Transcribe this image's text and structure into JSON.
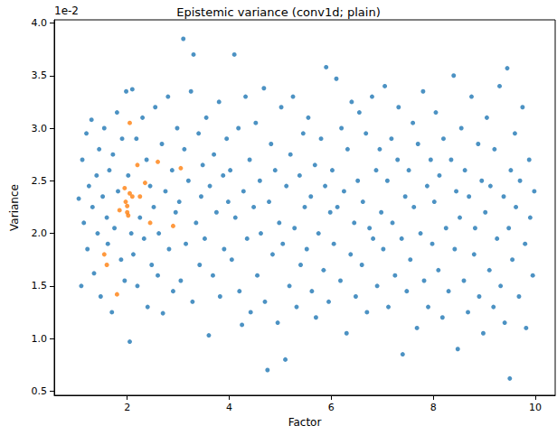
{
  "chart_data": {
    "type": "scatter",
    "title": "Epistemic variance (conv1d; plain)",
    "x_label": "Factor",
    "y_label": "Variance",
    "annotations": [
      "1e-2"
    ],
    "xlim": [
      0.57,
      10.39
    ],
    "xticks": [
      2,
      4,
      6,
      8,
      10
    ],
    "ylim": [
      0.46,
      4.03
    ],
    "yticks": [
      0.5,
      {
        "value": 1,
        "label": "1.0"
      },
      1.5,
      {
        "value": 2,
        "label": "2.0"
      },
      2.5,
      {
        "value": 3,
        "label": "3.0"
      },
      3.5,
      {
        "value": 4,
        "label": "4.0"
      }
    ],
    "grid": false,
    "marker": "circle",
    "series": [
      {
        "color": "#1f77b4",
        "values": [
          [
            1.05,
            2.33
          ],
          [
            1.1,
            1.5
          ],
          [
            1.12,
            2.7
          ],
          [
            1.15,
            2.1
          ],
          [
            1.2,
            2.95
          ],
          [
            1.22,
            1.85
          ],
          [
            1.25,
            2.45
          ],
          [
            1.3,
            3.08
          ],
          [
            1.32,
            2.25
          ],
          [
            1.35,
            1.62
          ],
          [
            1.4,
            2.55
          ],
          [
            1.42,
            2.0
          ],
          [
            1.45,
            2.8
          ],
          [
            1.48,
            1.4
          ],
          [
            1.52,
            2.35
          ],
          [
            1.55,
            3.0
          ],
          [
            1.6,
            2.15
          ],
          [
            1.62,
            1.9
          ],
          [
            1.65,
            2.6
          ],
          [
            1.7,
            1.25
          ],
          [
            1.72,
            2.75
          ],
          [
            1.75,
            2.05
          ],
          [
            1.8,
            3.15
          ],
          [
            1.82,
            2.4
          ],
          [
            1.88,
            1.75
          ],
          [
            1.9,
            2.9
          ],
          [
            1.95,
            1.55
          ],
          [
            1.98,
            3.35
          ],
          [
            2.02,
            2.55
          ],
          [
            2.05,
            0.97
          ],
          [
            2.08,
            2.0
          ],
          [
            2.1,
            3.37
          ],
          [
            2.12,
            1.8
          ],
          [
            2.18,
            2.9
          ],
          [
            2.2,
            1.5
          ],
          [
            2.25,
            2.15
          ],
          [
            2.3,
            3.1
          ],
          [
            2.33,
            1.95
          ],
          [
            2.38,
            2.7
          ],
          [
            2.4,
            1.3
          ],
          [
            2.45,
            2.45
          ],
          [
            2.48,
            1.7
          ],
          [
            2.52,
            2.25
          ],
          [
            2.55,
            3.2
          ],
          [
            2.6,
            1.6
          ],
          [
            2.62,
            2.0
          ],
          [
            2.68,
            2.85
          ],
          [
            2.7,
            1.24
          ],
          [
            2.75,
            2.4
          ],
          [
            2.8,
            3.3
          ],
          [
            2.82,
            1.85
          ],
          [
            2.88,
            2.6
          ],
          [
            2.9,
            1.45
          ],
          [
            2.95,
            2.2
          ],
          [
            2.98,
            3.0
          ],
          [
            3.02,
            2.3
          ],
          [
            3.05,
            1.55
          ],
          [
            3.1,
            3.85
          ],
          [
            3.12,
            2.8
          ],
          [
            3.15,
            1.9
          ],
          [
            3.2,
            2.5
          ],
          [
            3.25,
            3.35
          ],
          [
            3.28,
            1.35
          ],
          [
            3.3,
            3.7
          ],
          [
            3.35,
            2.1
          ],
          [
            3.4,
            2.95
          ],
          [
            3.42,
            1.7
          ],
          [
            3.45,
            2.35
          ],
          [
            3.48,
            2.65
          ],
          [
            3.52,
            1.95
          ],
          [
            3.55,
            3.1
          ],
          [
            3.6,
            1.03
          ],
          [
            3.62,
            2.45
          ],
          [
            3.68,
            1.6
          ],
          [
            3.7,
            2.75
          ],
          [
            3.75,
            2.2
          ],
          [
            3.8,
            3.25
          ],
          [
            3.82,
            1.4
          ],
          [
            3.88,
            2.55
          ],
          [
            3.9,
            1.85
          ],
          [
            3.95,
            2.9
          ],
          [
            3.98,
            2.3
          ],
          [
            4.02,
            2.6
          ],
          [
            4.05,
            1.75
          ],
          [
            4.1,
            3.7
          ],
          [
            4.12,
            2.15
          ],
          [
            4.18,
            3.0
          ],
          [
            4.2,
            1.45
          ],
          [
            4.25,
            1.13
          ],
          [
            4.28,
            2.4
          ],
          [
            4.32,
            3.3
          ],
          [
            4.35,
            1.95
          ],
          [
            4.4,
            2.7
          ],
          [
            4.42,
            1.25
          ],
          [
            4.48,
            2.25
          ],
          [
            4.52,
            3.05
          ],
          [
            4.55,
            1.6
          ],
          [
            4.6,
            2.5
          ],
          [
            4.62,
            2.0
          ],
          [
            4.68,
            3.38
          ],
          [
            4.7,
            1.35
          ],
          [
            4.75,
            0.7
          ],
          [
            4.78,
            2.3
          ],
          [
            4.82,
            2.85
          ],
          [
            4.85,
            1.8
          ],
          [
            4.9,
            2.6
          ],
          [
            4.95,
            1.15
          ],
          [
            4.98,
            2.1
          ],
          [
            5.02,
            3.2
          ],
          [
            5.05,
            1.9
          ],
          [
            5.1,
            0.8
          ],
          [
            5.12,
            2.45
          ],
          [
            5.18,
            1.5
          ],
          [
            5.2,
            2.75
          ],
          [
            5.25,
            3.3
          ],
          [
            5.28,
            2.05
          ],
          [
            5.32,
            1.3
          ],
          [
            5.38,
            2.55
          ],
          [
            5.4,
            1.7
          ],
          [
            5.45,
            2.95
          ],
          [
            5.48,
            2.25
          ],
          [
            5.52,
            1.85
          ],
          [
            5.55,
            3.1
          ],
          [
            5.6,
            2.35
          ],
          [
            5.62,
            1.45
          ],
          [
            5.68,
            2.65
          ],
          [
            5.7,
            1.2
          ],
          [
            5.75,
            2.0
          ],
          [
            5.8,
            2.9
          ],
          [
            5.85,
            1.65
          ],
          [
            5.88,
            2.45
          ],
          [
            5.9,
            3.58
          ],
          [
            5.95,
            1.35
          ],
          [
            5.98,
            2.2
          ],
          [
            6.02,
            2.6
          ],
          [
            6.05,
            1.9
          ],
          [
            6.1,
            3.47
          ],
          [
            6.12,
            2.25
          ],
          [
            6.18,
            1.55
          ],
          [
            6.2,
            3.0
          ],
          [
            6.25,
            2.4
          ],
          [
            6.3,
            1.05
          ],
          [
            6.32,
            2.8
          ],
          [
            6.38,
            1.8
          ],
          [
            6.4,
            3.25
          ],
          [
            6.45,
            2.1
          ],
          [
            6.48,
            1.4
          ],
          [
            6.52,
            2.5
          ],
          [
            6.55,
            3.15
          ],
          [
            6.6,
            1.7
          ],
          [
            6.62,
            2.3
          ],
          [
            6.68,
            2.95
          ],
          [
            6.7,
            1.25
          ],
          [
            6.75,
            2.05
          ],
          [
            6.8,
            3.3
          ],
          [
            6.82,
            1.95
          ],
          [
            6.88,
            2.6
          ],
          [
            6.9,
            1.5
          ],
          [
            6.95,
            2.8
          ],
          [
            6.98,
            2.2
          ],
          [
            7.02,
            1.85
          ],
          [
            7.05,
            3.4
          ],
          [
            7.1,
            2.5
          ],
          [
            7.12,
            1.3
          ],
          [
            7.18,
            2.9
          ],
          [
            7.2,
            2.1
          ],
          [
            7.25,
            1.6
          ],
          [
            7.3,
            2.7
          ],
          [
            7.32,
            3.2
          ],
          [
            7.38,
            1.95
          ],
          [
            7.4,
            0.85
          ],
          [
            7.45,
            2.35
          ],
          [
            7.48,
            1.45
          ],
          [
            7.52,
            2.6
          ],
          [
            7.55,
            1.75
          ],
          [
            7.6,
            3.05
          ],
          [
            7.62,
            2.25
          ],
          [
            7.68,
            1.1
          ],
          [
            7.7,
            2.85
          ],
          [
            7.75,
            2.0
          ],
          [
            7.8,
            3.35
          ],
          [
            7.82,
            1.55
          ],
          [
            7.88,
            2.45
          ],
          [
            7.9,
            1.3
          ],
          [
            7.95,
            2.7
          ],
          [
            7.98,
            1.9
          ],
          [
            8.02,
            2.3
          ],
          [
            8.05,
            3.15
          ],
          [
            8.1,
            1.65
          ],
          [
            8.12,
            2.55
          ],
          [
            8.18,
            1.2
          ],
          [
            8.2,
            2.9
          ],
          [
            8.25,
            2.05
          ],
          [
            8.3,
            1.45
          ],
          [
            8.35,
            2.7
          ],
          [
            8.4,
            3.5
          ],
          [
            8.42,
            1.85
          ],
          [
            8.45,
            2.4
          ],
          [
            8.48,
            0.9
          ],
          [
            8.52,
            2.15
          ],
          [
            8.55,
            3.0
          ],
          [
            8.6,
            1.55
          ],
          [
            8.62,
            2.6
          ],
          [
            8.68,
            1.25
          ],
          [
            8.7,
            2.35
          ],
          [
            8.75,
            3.3
          ],
          [
            8.8,
            1.8
          ],
          [
            8.82,
            2.05
          ],
          [
            8.88,
            2.85
          ],
          [
            8.9,
            1.4
          ],
          [
            8.95,
            2.5
          ],
          [
            8.98,
            1.05
          ],
          [
            9.02,
            2.2
          ],
          [
            9.05,
            3.1
          ],
          [
            9.1,
            1.65
          ],
          [
            9.12,
            2.45
          ],
          [
            9.18,
            1.3
          ],
          [
            9.2,
            2.8
          ],
          [
            9.25,
            1.95
          ],
          [
            9.3,
            3.4
          ],
          [
            9.32,
            1.5
          ],
          [
            9.38,
            2.35
          ],
          [
            9.4,
            1.15
          ],
          [
            9.45,
            3.57
          ],
          [
            9.48,
            2.05
          ],
          [
            9.5,
            0.62
          ],
          [
            9.52,
            2.6
          ],
          [
            9.55,
            1.75
          ],
          [
            9.6,
            2.95
          ],
          [
            9.62,
            2.25
          ],
          [
            9.68,
            1.4
          ],
          [
            9.7,
            2.5
          ],
          [
            9.75,
            3.2
          ],
          [
            9.8,
            1.9
          ],
          [
            9.82,
            1.1
          ],
          [
            9.88,
            2.7
          ],
          [
            9.9,
            2.15
          ],
          [
            9.95,
            1.6
          ],
          [
            9.98,
            2.4
          ]
        ]
      },
      {
        "color": "#ff7f0e",
        "values": [
          [
            1.55,
            1.8
          ],
          [
            1.6,
            1.7
          ],
          [
            1.8,
            1.42
          ],
          [
            1.85,
            2.22
          ],
          [
            1.95,
            2.43
          ],
          [
            1.97,
            2.3
          ],
          [
            2.0,
            2.2
          ],
          [
            2.0,
            2.26
          ],
          [
            2.02,
            2.17
          ],
          [
            2.05,
            3.05
          ],
          [
            2.05,
            2.38
          ],
          [
            2.1,
            2.35
          ],
          [
            2.2,
            2.65
          ],
          [
            2.25,
            2.35
          ],
          [
            2.35,
            2.48
          ],
          [
            2.45,
            2.1
          ],
          [
            2.6,
            2.68
          ],
          [
            2.9,
            2.07
          ],
          [
            3.05,
            2.62
          ]
        ]
      }
    ]
  }
}
